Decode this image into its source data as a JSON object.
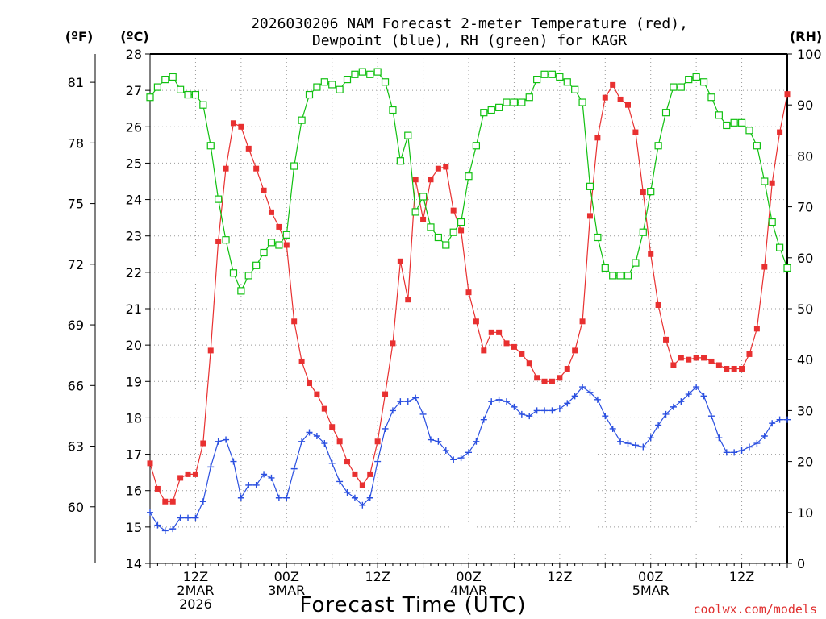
{
  "title": {
    "line1": "2026030206 NAM Forecast 2-meter Temperature (red),",
    "line2": "Dewpoint (blue), RH (green) for KAGR"
  },
  "units": {
    "f": "(ºF)",
    "c": "(ºC)",
    "rh": "(RH)"
  },
  "credit": "coolwx.com/models",
  "colors": {
    "temperature": "#e83030",
    "dewpoint": "#2a4fe0",
    "rh": "#10c010",
    "grid": "#999999"
  },
  "chart_data": {
    "type": "line",
    "title": "2026030206 NAM Forecast 2-meter Temperature (red), Dewpoint (blue), RH (green) for KAGR",
    "xlabel": "Forecast Time (UTC)",
    "grid": true,
    "x_hours": [
      6,
      7,
      8,
      9,
      10,
      11,
      12,
      13,
      14,
      15,
      16,
      17,
      18,
      19,
      20,
      21,
      22,
      23,
      24,
      25,
      26,
      27,
      28,
      29,
      30,
      31,
      32,
      33,
      34,
      35,
      36,
      37,
      38,
      39,
      40,
      41,
      42,
      43,
      44,
      45,
      46,
      47,
      48,
      49,
      50,
      51,
      52,
      53,
      54,
      55,
      56,
      57,
      58,
      59,
      60,
      61,
      62,
      63,
      64,
      65,
      66,
      67,
      68,
      69,
      70,
      71,
      72,
      73,
      74,
      75,
      76,
      77,
      78,
      79,
      80,
      81,
      82,
      83,
      84,
      85,
      86,
      87,
      88,
      89,
      90
    ],
    "x_ticks": [
      {
        "hour": 12,
        "lines": [
          "12Z",
          "2MAR",
          "2026"
        ]
      },
      {
        "hour": 24,
        "lines": [
          "00Z",
          "3MAR"
        ]
      },
      {
        "hour": 36,
        "lines": [
          "12Z"
        ]
      },
      {
        "hour": 48,
        "lines": [
          "00Z",
          "4MAR"
        ]
      },
      {
        "hour": 60,
        "lines": [
          "12Z"
        ]
      },
      {
        "hour": 72,
        "lines": [
          "00Z",
          "5MAR"
        ]
      },
      {
        "hour": 84,
        "lines": [
          "12Z"
        ]
      }
    ],
    "xlim": [
      6,
      90
    ],
    "axes": {
      "celsius": {
        "label": "(ºC)",
        "range": [
          14,
          28
        ],
        "ticks": [
          14,
          15,
          16,
          17,
          18,
          19,
          20,
          21,
          22,
          23,
          24,
          25,
          26,
          27,
          28
        ]
      },
      "fahrenheit": {
        "label": "(ºF)",
        "ticks": [
          60,
          63,
          66,
          69,
          72,
          75,
          78,
          81
        ]
      },
      "rh": {
        "label": "(RH)",
        "range": [
          0,
          100
        ],
        "ticks": [
          0,
          10,
          20,
          30,
          40,
          50,
          60,
          70,
          80,
          90,
          100
        ]
      }
    },
    "series": [
      {
        "name": "Temperature (red)",
        "axis": "celsius",
        "color": "#e83030",
        "marker": "filled-square",
        "values": [
          16.75,
          16.05,
          15.7,
          15.7,
          16.35,
          16.45,
          16.45,
          17.3,
          19.85,
          22.85,
          24.85,
          26.1,
          26.0,
          25.4,
          24.85,
          24.25,
          23.65,
          23.25,
          22.75,
          20.65,
          19.55,
          18.95,
          18.65,
          18.25,
          17.75,
          17.35,
          16.8,
          16.45,
          16.15,
          16.45,
          17.35,
          18.65,
          20.05,
          22.3,
          21.25,
          24.55,
          23.45,
          24.55,
          24.85,
          24.9,
          23.7,
          23.15,
          21.45,
          20.65,
          19.85,
          20.35,
          20.35,
          20.05,
          19.95,
          19.75,
          19.5,
          19.1,
          19.0,
          19.0,
          19.1,
          19.35,
          19.85,
          20.65,
          23.55,
          25.7,
          26.8,
          27.15,
          26.75,
          26.6,
          25.85,
          24.2,
          22.5,
          21.1,
          20.15,
          19.45,
          19.65,
          19.6,
          19.65,
          19.65,
          19.55,
          19.45,
          19.35,
          19.35,
          19.35,
          19.75,
          20.45,
          22.15,
          24.45,
          25.85,
          26.9
        ]
      },
      {
        "name": "Dewpoint (blue)",
        "axis": "celsius",
        "color": "#2a4fe0",
        "marker": "plus",
        "values": [
          15.4,
          15.05,
          14.9,
          14.95,
          15.25,
          15.25,
          15.25,
          15.7,
          16.65,
          17.35,
          17.4,
          16.8,
          15.8,
          16.15,
          16.15,
          16.45,
          16.35,
          15.8,
          15.8,
          16.6,
          17.35,
          17.6,
          17.5,
          17.3,
          16.75,
          16.25,
          15.95,
          15.8,
          15.6,
          15.8,
          16.8,
          17.7,
          18.2,
          18.45,
          18.45,
          18.55,
          18.1,
          17.4,
          17.35,
          17.1,
          16.85,
          16.9,
          17.05,
          17.35,
          17.95,
          18.45,
          18.5,
          18.45,
          18.3,
          18.1,
          18.05,
          18.2,
          18.2,
          18.2,
          18.25,
          18.4,
          18.6,
          18.85,
          18.7,
          18.5,
          18.05,
          17.7,
          17.35,
          17.3,
          17.25,
          17.2,
          17.45,
          17.8,
          18.1,
          18.3,
          18.45,
          18.65,
          18.85,
          18.6,
          18.05,
          17.45,
          17.05,
          17.05,
          17.1,
          17.2,
          17.3,
          17.5,
          17.85,
          17.95,
          17.95
        ]
      },
      {
        "name": "RH (green)",
        "axis": "rh",
        "color": "#10c010",
        "marker": "open-square",
        "values": [
          91.5,
          93.5,
          95,
          95.5,
          93,
          92,
          92,
          90,
          82,
          71.5,
          63.5,
          57,
          53.5,
          56.5,
          58.5,
          61,
          63,
          62.5,
          64.5,
          78,
          87,
          92,
          93.5,
          94.5,
          94,
          93,
          95,
          96,
          96.5,
          96,
          96.5,
          94.5,
          89,
          79,
          84,
          69,
          72,
          66,
          64,
          62.5,
          65,
          67,
          76,
          82,
          88.5,
          89,
          89.5,
          90.5,
          90.5,
          90.5,
          91.5,
          95,
          96,
          96,
          95.5,
          94.5,
          93,
          90.5,
          74,
          64,
          58,
          56.5,
          56.5,
          56.5,
          59,
          65,
          73,
          82,
          88.5,
          93.5,
          93.5,
          95,
          95.5,
          94.5,
          91.5,
          88,
          86,
          86.5,
          86.5,
          85,
          82,
          75,
          67,
          62,
          58
        ]
      }
    ]
  }
}
